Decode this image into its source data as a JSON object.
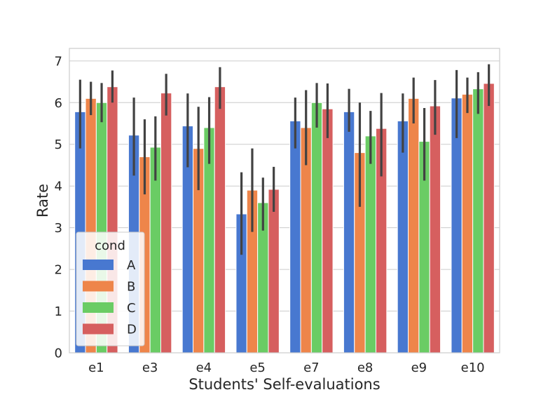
{
  "chart_data": {
    "type": "bar",
    "title": "",
    "xlabel": "Students' Self-evaluations",
    "ylabel": "Rate",
    "categories": [
      "e1",
      "e3",
      "e4",
      "e5",
      "e7",
      "e8",
      "e9",
      "e10"
    ],
    "ylim": [
      0,
      7.3
    ],
    "yticks": [
      0,
      1,
      2,
      3,
      4,
      5,
      6,
      7
    ],
    "grid": true,
    "legend": {
      "title": "cond",
      "placement": "lower-left"
    },
    "series": [
      {
        "name": "A",
        "color": "#4878d0",
        "values": [
          5.78,
          5.22,
          5.44,
          3.33,
          5.56,
          5.78,
          5.56,
          6.11
        ],
        "err_low": [
          4.9,
          4.25,
          4.45,
          2.35,
          4.9,
          5.3,
          4.8,
          5.15
        ],
        "err_high": [
          6.55,
          6.12,
          6.22,
          4.33,
          6.12,
          6.33,
          6.22,
          6.78
        ]
      },
      {
        "name": "B",
        "color": "#ee854a",
        "values": [
          6.1,
          4.7,
          4.9,
          3.9,
          5.4,
          4.8,
          6.1,
          6.2
        ],
        "err_low": [
          5.7,
          3.8,
          3.9,
          2.9,
          4.5,
          3.5,
          5.5,
          5.75
        ],
        "err_high": [
          6.5,
          5.6,
          5.9,
          4.9,
          6.3,
          6.0,
          6.6,
          6.6
        ]
      },
      {
        "name": "C",
        "color": "#6acc64",
        "values": [
          6.0,
          4.93,
          5.4,
          3.6,
          6.0,
          5.2,
          5.07,
          6.33
        ],
        "err_low": [
          5.53,
          4.13,
          4.53,
          2.93,
          5.4,
          4.53,
          4.13,
          5.73
        ],
        "err_high": [
          6.47,
          5.67,
          6.13,
          4.2,
          6.47,
          5.8,
          5.87,
          6.73
        ]
      },
      {
        "name": "D",
        "color": "#d65f5f",
        "values": [
          6.38,
          6.23,
          6.38,
          3.92,
          5.85,
          5.38,
          5.92,
          6.46
        ],
        "err_low": [
          6.0,
          5.69,
          5.85,
          3.38,
          5.15,
          4.23,
          5.23,
          5.92
        ],
        "err_high": [
          6.77,
          6.69,
          6.85,
          4.46,
          6.46,
          6.23,
          6.54,
          6.92
        ]
      }
    ]
  }
}
